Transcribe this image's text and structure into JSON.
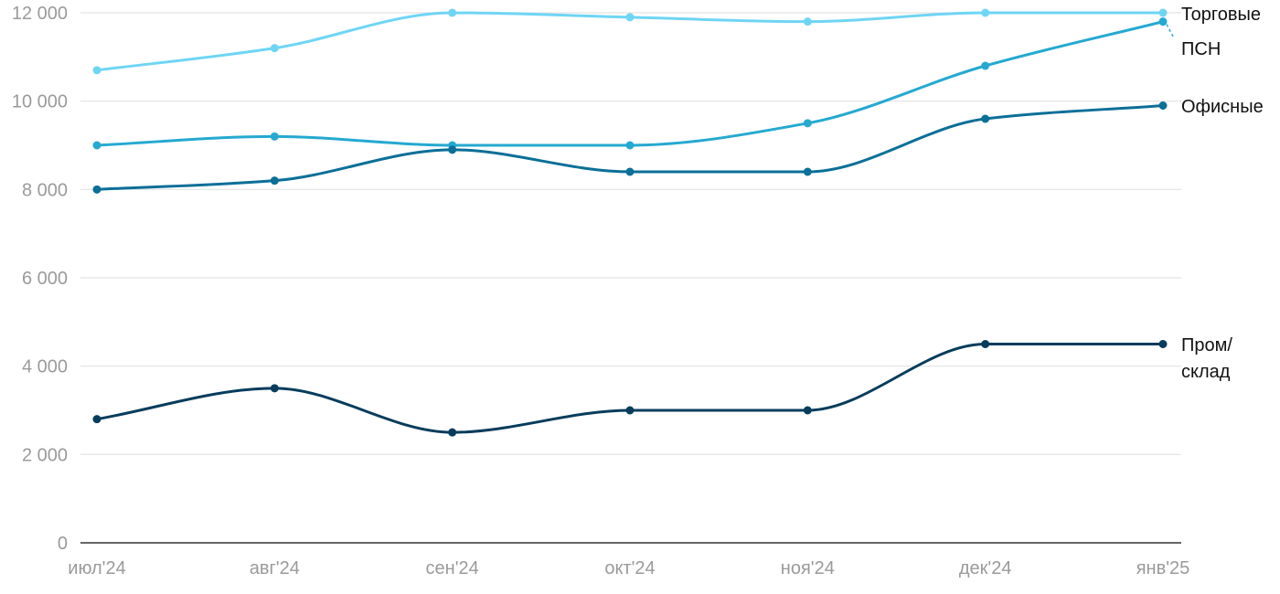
{
  "chart_data": {
    "type": "line",
    "title": "",
    "xlabel": "",
    "ylabel": "",
    "categories": [
      "июл'24",
      "авг'24",
      "сен'24",
      "окт'24",
      "ноя'24",
      "дек'24",
      "янв'25"
    ],
    "ylim": [
      0,
      12000
    ],
    "yticks": [
      {
        "value": 0,
        "label": "0"
      },
      {
        "value": 2000,
        "label": "2 000"
      },
      {
        "value": 4000,
        "label": "4 000"
      },
      {
        "value": 6000,
        "label": "6 000"
      },
      {
        "value": 8000,
        "label": "8 000"
      },
      {
        "value": 10000,
        "label": "10 000"
      },
      {
        "value": 12000,
        "label": "12 000"
      }
    ],
    "grid": true,
    "legend": "none (direct labels at right)",
    "series": [
      {
        "name": "Торговые",
        "label_lines": [
          "Торговые"
        ],
        "color": "#6fd5f5",
        "values": [
          10700,
          11200,
          12000,
          11900,
          11800,
          12000,
          12000
        ]
      },
      {
        "name": "ПСН",
        "label_lines": [
          "ПСН"
        ],
        "color": "#25a9d0",
        "values": [
          9000,
          9200,
          9000,
          9000,
          9500,
          10800,
          11800
        ]
      },
      {
        "name": "Офисные",
        "label_lines": [
          "Офисные"
        ],
        "color": "#0b6f98",
        "values": [
          8000,
          8200,
          8900,
          8400,
          8400,
          9600,
          9900
        ]
      },
      {
        "name": "Пром/склад",
        "label_lines": [
          "Пром/",
          "склад"
        ],
        "color": "#073c5c",
        "values": [
          2800,
          3500,
          2500,
          3000,
          3000,
          4500,
          4500
        ]
      }
    ]
  }
}
